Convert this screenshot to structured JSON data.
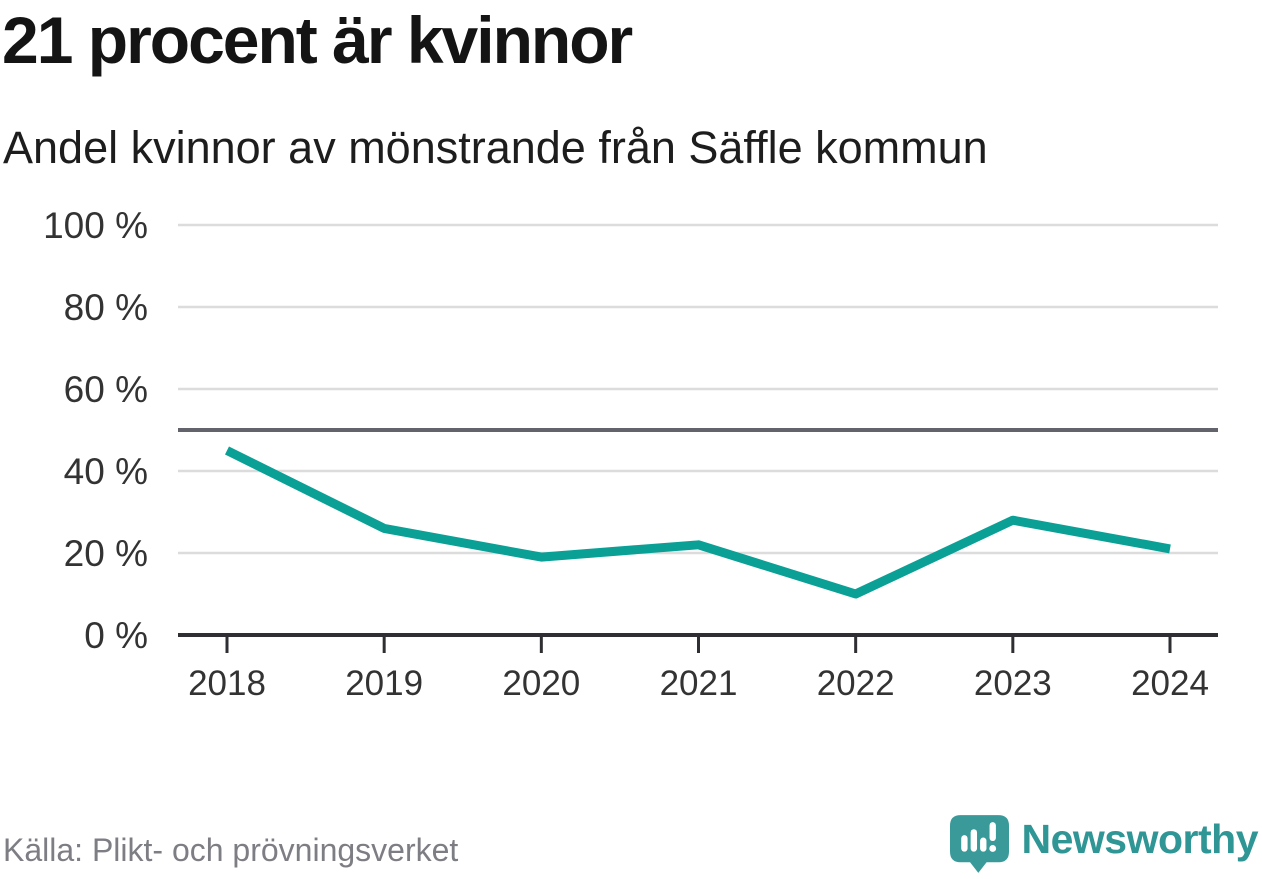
{
  "chart_data": {
    "type": "line",
    "title": "21 procent är kvinnor",
    "subtitle": "Andel kvinnor av mönstrande från Säffle kommun",
    "categories": [
      "2018",
      "2019",
      "2020",
      "2021",
      "2022",
      "2023",
      "2024"
    ],
    "series": [
      {
        "name": "Andel kvinnor av mönstrande",
        "values": [
          45,
          26,
          19,
          22,
          10,
          28,
          21
        ]
      }
    ],
    "ylim": [
      0,
      100
    ],
    "y_ticks": [
      0,
      20,
      40,
      60,
      80,
      100
    ],
    "y_tick_labels": [
      "0 %",
      "20 %",
      "40 %",
      "60 %",
      "80 %",
      "100 %"
    ],
    "reference_line": 50,
    "grid": true,
    "legend": false,
    "colors": {
      "line": "#0aa096",
      "grid": "#dcdcdc",
      "reference": "#63636b",
      "axis": "#2f2f33",
      "tick_text": "#333333"
    }
  },
  "footer": {
    "source": "Källa: Plikt- och prövningsverket",
    "brand": "Newsworthy",
    "brand_color": "#2f9695",
    "brand_icon": "newsworthy-speech-bubble-barchart-icon"
  }
}
